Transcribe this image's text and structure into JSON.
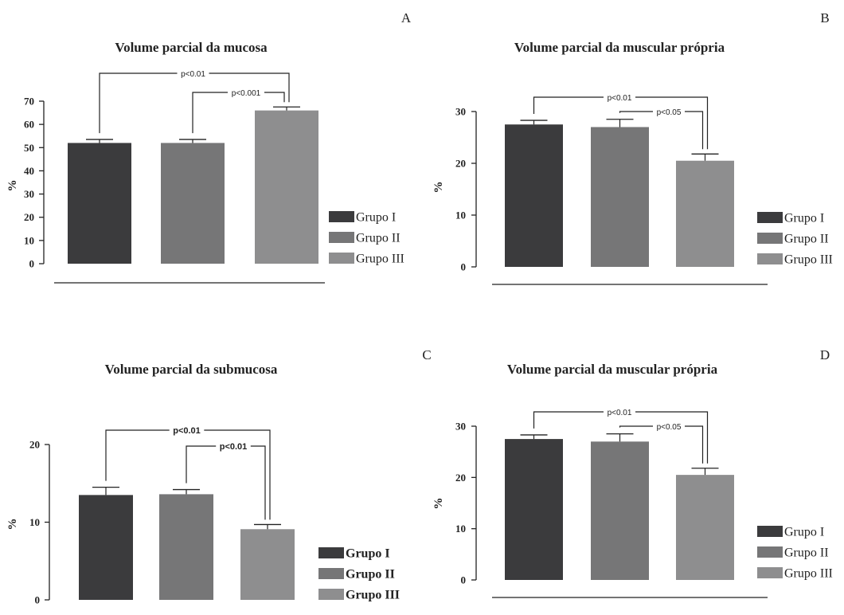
{
  "colors": {
    "grupo_i": "#3b3b3d",
    "grupo_ii": "#767677",
    "grupo_iii": "#8e8e8f",
    "ink": "#222222"
  },
  "legend_labels": [
    "Grupo I",
    "Grupo II",
    "Grupo III"
  ],
  "chart_data": [
    {
      "panel": "A",
      "type": "bar",
      "title": "Volume parcial da mucosa",
      "ylabel": "%",
      "ylim": [
        0,
        70
      ],
      "yticks": [
        0,
        10,
        20,
        30,
        40,
        50,
        60,
        70
      ],
      "categories": [
        "Grupo I",
        "Grupo II",
        "Grupo III"
      ],
      "values": [
        52,
        52,
        66
      ],
      "errors": [
        1.5,
        1.5,
        1.5
      ],
      "comparisons": [
        {
          "from": "Grupo I",
          "to": "Grupo III",
          "label": "p<0.01"
        },
        {
          "from": "Grupo II",
          "to": "Grupo III",
          "label": "p<0.001"
        }
      ],
      "bold": false
    },
    {
      "panel": "B",
      "type": "bar",
      "title": "Volume parcial da muscular própria",
      "ylabel": "%",
      "ylim": [
        0,
        30
      ],
      "yticks": [
        0,
        10,
        20,
        30
      ],
      "categories": [
        "Grupo I",
        "Grupo II",
        "Grupo III"
      ],
      "values": [
        27.5,
        27,
        20.5
      ],
      "errors": [
        0.8,
        1.5,
        1.3
      ],
      "comparisons": [
        {
          "from": "Grupo I",
          "to": "Grupo III",
          "label": "p<0.01"
        },
        {
          "from": "Grupo II",
          "to": "Grupo III",
          "label": "p<0.05"
        }
      ],
      "bold": false
    },
    {
      "panel": "C",
      "type": "bar",
      "title": "Volume parcial da submucosa",
      "ylabel": "%",
      "ylim": [
        0,
        20
      ],
      "yticks": [
        0,
        10,
        20
      ],
      "categories": [
        "Grupo I",
        "Grupo II",
        "Grupo III"
      ],
      "values": [
        13.5,
        13.6,
        9.1
      ],
      "errors": [
        1.0,
        0.6,
        0.6
      ],
      "comparisons": [
        {
          "from": "Grupo I",
          "to": "Grupo III",
          "label": "p<0.01"
        },
        {
          "from": "Grupo II",
          "to": "Grupo III",
          "label": "p<0.01"
        }
      ],
      "bold": true
    },
    {
      "panel": "D",
      "type": "bar",
      "title": "Volume parcial da muscular própria",
      "ylabel": "%",
      "ylim": [
        0,
        30
      ],
      "yticks": [
        0,
        10,
        20,
        30
      ],
      "categories": [
        "Grupo I",
        "Grupo II",
        "Grupo III"
      ],
      "values": [
        27.5,
        27,
        20.5
      ],
      "errors": [
        0.8,
        1.5,
        1.3
      ],
      "comparisons": [
        {
          "from": "Grupo I",
          "to": "Grupo III",
          "label": "p<0.01"
        },
        {
          "from": "Grupo II",
          "to": "Grupo III",
          "label": "p<0.05"
        }
      ],
      "bold": false
    }
  ]
}
